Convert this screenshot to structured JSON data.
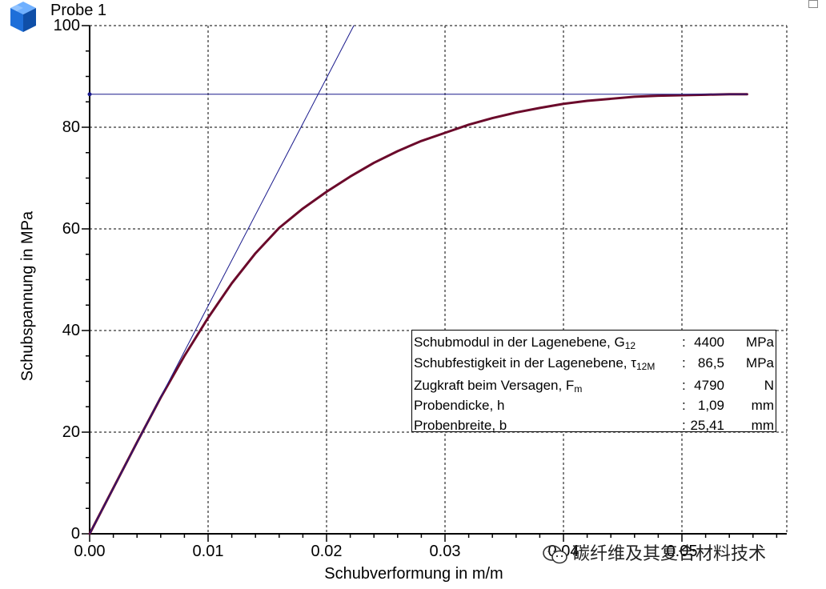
{
  "probe_title": "Probe 1",
  "watermark": "碳纤维及其复合材料技术",
  "colors": {
    "curve": "#6b0a2b",
    "reference_lines": "#1a1a8c",
    "grid": "#000000",
    "logo_blue": "#1e6fd9"
  },
  "icons": {
    "logo": "cube-stack-icon",
    "watermark": "wechat-icon",
    "corner": "window-icon"
  },
  "chart_data": {
    "type": "line",
    "xlabel": "Schubverformung in m/m",
    "ylabel": "Schubspannung in MPa",
    "xlim": [
      0,
      0.059
    ],
    "ylim": [
      0,
      100
    ],
    "x_ticks": [
      "0.00",
      "0.01",
      "0.02",
      "0.03",
      "0.04",
      "0.05"
    ],
    "y_ticks": [
      "0",
      "20",
      "40",
      "60",
      "80",
      "100"
    ],
    "grid": true,
    "series": [
      {
        "x": [
          0.0,
          0.002,
          0.004,
          0.006,
          0.008,
          0.01,
          0.012,
          0.014,
          0.016,
          0.018,
          0.02,
          0.022,
          0.024,
          0.026,
          0.028,
          0.03,
          0.032,
          0.034,
          0.036,
          0.038,
          0.04,
          0.042,
          0.044,
          0.046,
          0.048,
          0.05,
          0.052,
          0.054,
          0.0555
        ],
        "y": [
          0.0,
          9.0,
          18.0,
          26.8,
          35.0,
          42.5,
          49.3,
          55.2,
          60.2,
          64.0,
          67.3,
          70.3,
          73.0,
          75.3,
          77.3,
          78.9,
          80.5,
          81.8,
          82.9,
          83.8,
          84.6,
          85.2,
          85.6,
          86.0,
          86.2,
          86.3,
          86.4,
          86.5,
          86.5
        ]
      },
      {
        "x": [
          0.0,
          0.0223
        ],
        "y": [
          0.0,
          100.0
        ]
      },
      {
        "x": [
          0.0,
          0.0555
        ],
        "y": [
          86.5,
          86.5
        ]
      }
    ]
  },
  "info_box": {
    "rows": [
      {
        "label": "Schubmodul in der Lagenebene, G",
        "sub": "12",
        "colon": ":",
        "value": "4400",
        "unit": "MPa"
      },
      {
        "label": "Schubfestigkeit in der Lagenebene, τ",
        "sub": "12M",
        "colon": ":",
        "value": "86,5",
        "unit": "MPa"
      },
      {
        "label": "Zugkraft beim Versagen, F",
        "sub": "m",
        "colon": ":",
        "value": "4790",
        "unit": "N"
      },
      {
        "label": "Probendicke, h",
        "sub": "",
        "colon": ":",
        "value": "1,09",
        "unit": "mm"
      },
      {
        "label": "Probenbreite, b",
        "sub": "",
        "colon": ":",
        "value": "25,41",
        "unit": "mm"
      }
    ]
  }
}
